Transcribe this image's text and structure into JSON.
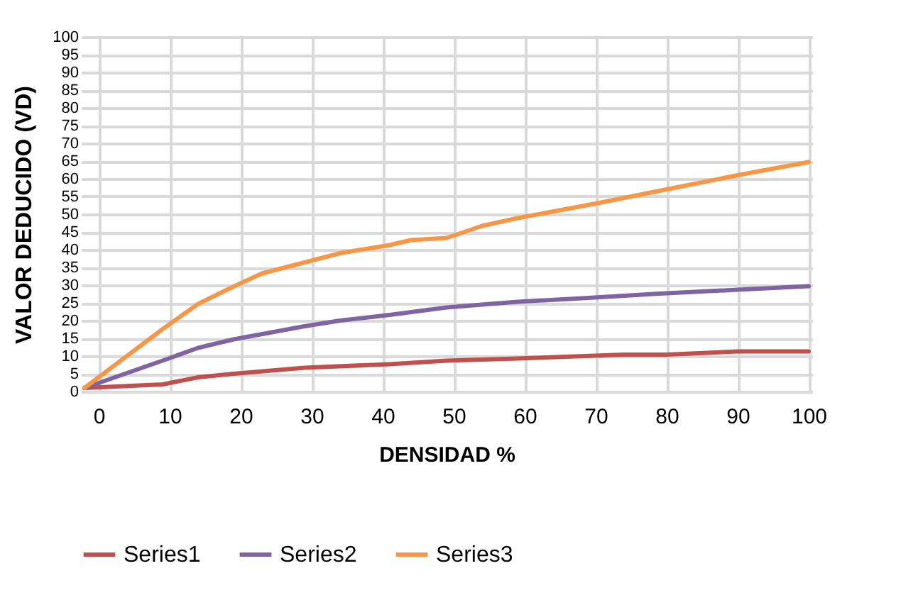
{
  "chart_data": {
    "type": "line",
    "xlabel": "DENSIDAD %",
    "ylabel": "VALOR DEDUCIDO  (VD)",
    "xlim": [
      -2.5,
      100.5
    ],
    "xticks": [
      0,
      10,
      20,
      30,
      40,
      50,
      60,
      70,
      80,
      90,
      100
    ],
    "ylim": [
      0,
      100
    ],
    "yticks": [
      0,
      5,
      10,
      15,
      20,
      25,
      30,
      35,
      40,
      45,
      50,
      55,
      60,
      65,
      70,
      75,
      80,
      85,
      90,
      95,
      100
    ],
    "grid": true,
    "legend": "bottom",
    "series": [
      {
        "name": "Series1",
        "color": "#c0504d",
        "x": [
          -2,
          9,
          14,
          19,
          29,
          41,
          49,
          59,
          74,
          80,
          90,
          100
        ],
        "values": [
          1,
          2,
          4,
          5,
          6.7,
          7.7,
          8.7,
          9.3,
          10.4,
          10.4,
          11.3,
          11.3
        ]
      },
      {
        "name": "Series2",
        "color": "#8064a2",
        "x": [
          -2,
          9,
          14,
          19,
          29,
          34,
          41,
          49,
          59,
          69,
          79,
          90,
          100
        ],
        "values": [
          1,
          8.7,
          12.3,
          14.7,
          18.4,
          20,
          21.6,
          23.7,
          25.3,
          26.4,
          27.6,
          28.7,
          29.7
        ]
      },
      {
        "name": "Series3",
        "color": "#f79646",
        "x": [
          -2,
          9,
          14,
          19,
          23,
          29,
          34,
          41,
          44,
          49,
          54,
          59,
          70,
          80,
          90,
          100
        ],
        "values": [
          1,
          17.6,
          24.7,
          29.6,
          33.3,
          36.4,
          39,
          41.3,
          42.7,
          43.3,
          46.7,
          48.9,
          53,
          57,
          61,
          64.7
        ]
      }
    ]
  }
}
